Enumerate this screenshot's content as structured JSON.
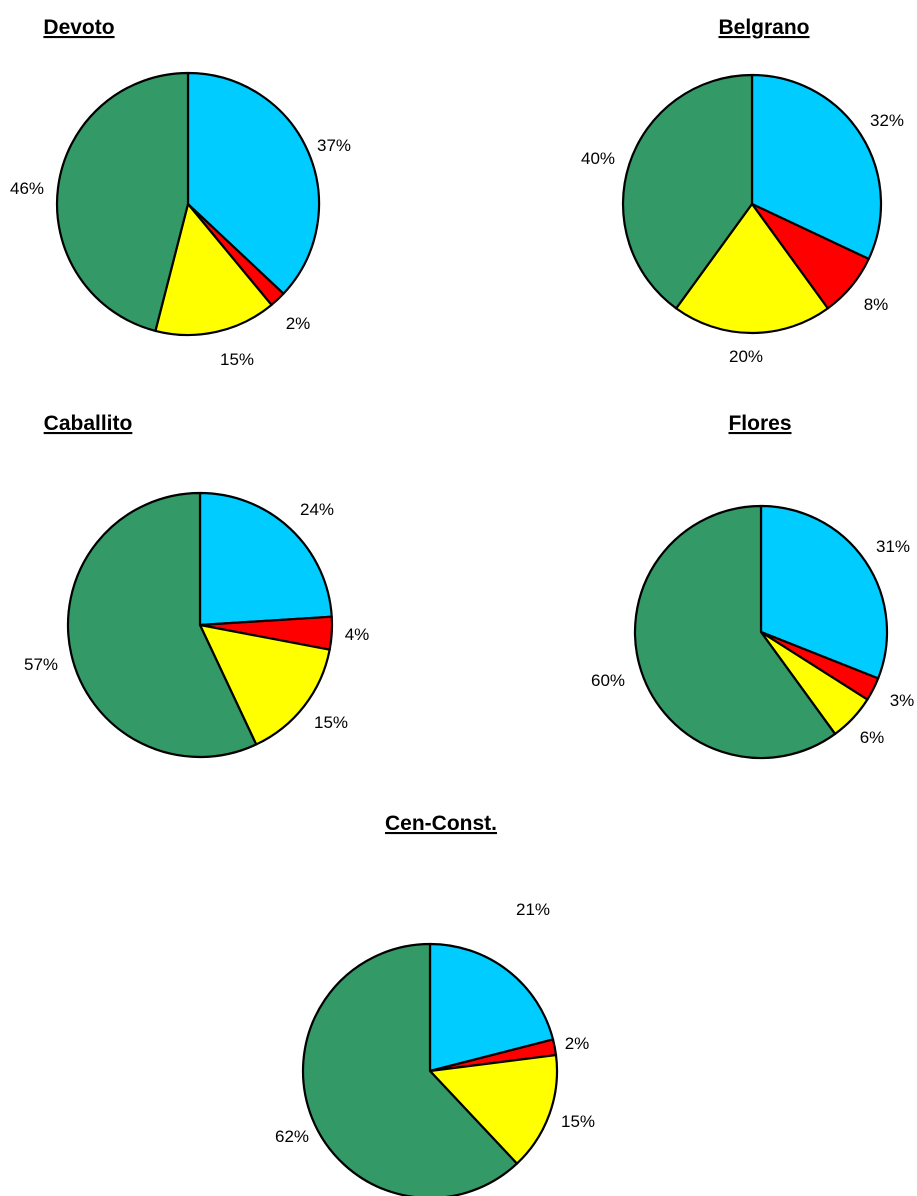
{
  "chart_data": [
    {
      "type": "pie",
      "title": "Devoto",
      "slices": [
        {
          "value": 37,
          "label": "37%",
          "color": "#00ccff"
        },
        {
          "value": 2,
          "label": "2%",
          "color": "#ff0000"
        },
        {
          "value": 15,
          "label": "15%",
          "color": "#ffff00"
        },
        {
          "value": 46,
          "label": "46%",
          "color": "#339966"
        }
      ]
    },
    {
      "type": "pie",
      "title": "Belgrano",
      "slices": [
        {
          "value": 32,
          "label": "32%",
          "color": "#00ccff"
        },
        {
          "value": 8,
          "label": "8%",
          "color": "#ff0000"
        },
        {
          "value": 20,
          "label": "20%",
          "color": "#ffff00"
        },
        {
          "value": 40,
          "label": "40%",
          "color": "#339966"
        }
      ]
    },
    {
      "type": "pie",
      "title": "Caballito",
      "slices": [
        {
          "value": 24,
          "label": "24%",
          "color": "#00ccff"
        },
        {
          "value": 4,
          "label": "4%",
          "color": "#ff0000"
        },
        {
          "value": 15,
          "label": "15%",
          "color": "#ffff00"
        },
        {
          "value": 57,
          "label": "57%",
          "color": "#339966"
        }
      ]
    },
    {
      "type": "pie",
      "title": "Flores",
      "slices": [
        {
          "value": 31,
          "label": "31%",
          "color": "#00ccff"
        },
        {
          "value": 3,
          "label": "3%",
          "color": "#ff0000"
        },
        {
          "value": 6,
          "label": "6%",
          "color": "#ffff00"
        },
        {
          "value": 60,
          "label": "60%",
          "color": "#339966"
        }
      ]
    },
    {
      "type": "pie",
      "title": "Cen-Const.",
      "slices": [
        {
          "value": 21,
          "label": "21%",
          "color": "#00ccff"
        },
        {
          "value": 2,
          "label": "2%",
          "color": "#ff0000"
        },
        {
          "value": 15,
          "label": "15%",
          "color": "#ffff00"
        },
        {
          "value": 62,
          "label": "62%",
          "color": "#339966"
        }
      ]
    }
  ]
}
